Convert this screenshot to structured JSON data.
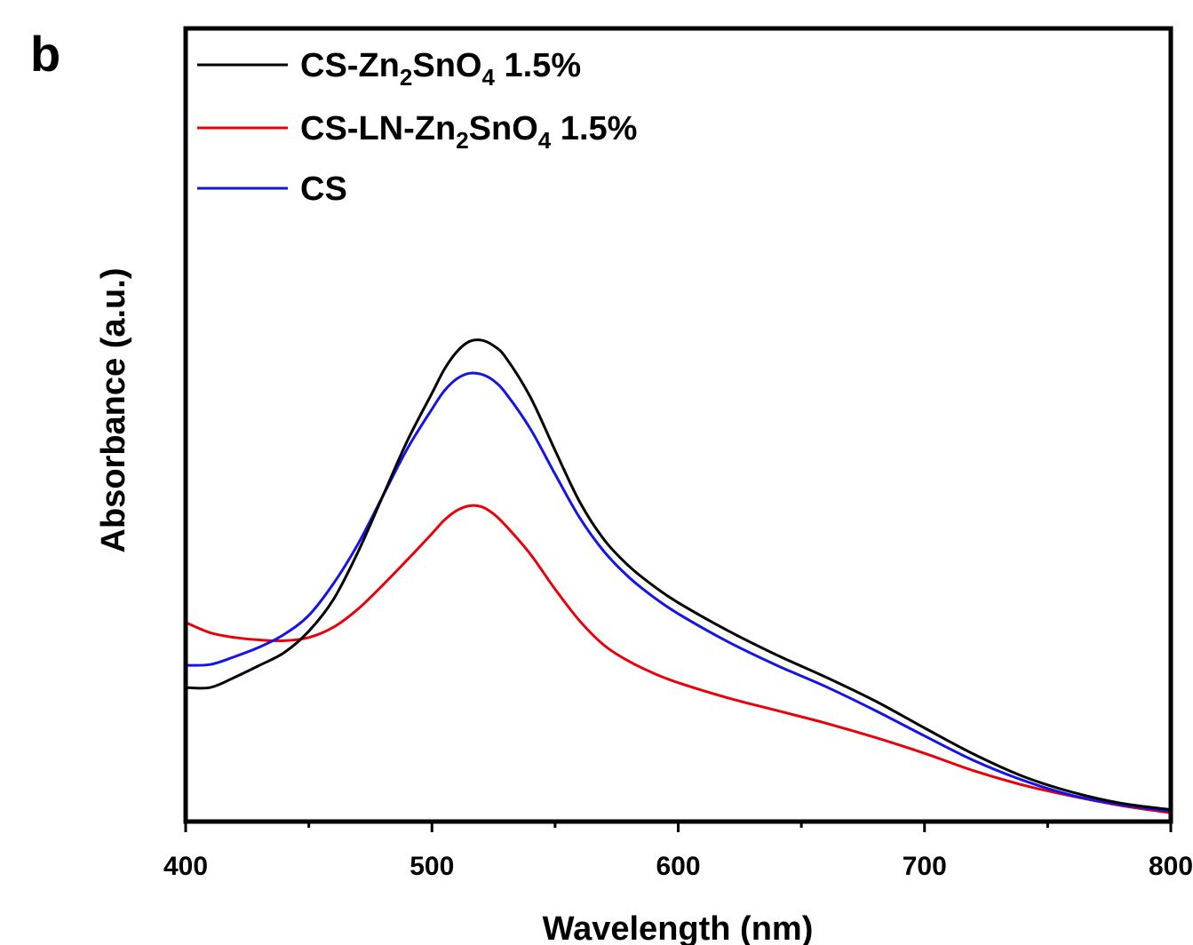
{
  "panel_label": "b",
  "chart_data": {
    "type": "line",
    "xlabel": "Wavelength (nm)",
    "ylabel": "Absorbance (a.u.)",
    "xlim": [
      400,
      800
    ],
    "ylim": [
      0,
      1
    ],
    "x_ticks": [
      400,
      500,
      600,
      700,
      800
    ],
    "x_tick_labels": [
      "400",
      "500",
      "600",
      "700",
      "800"
    ],
    "y_ticks_shown": false,
    "grid": false,
    "legend_position": "top-left",
    "series": [
      {
        "name": "CS-Zn2SnO4 1.5%",
        "legend": {
          "pre": "CS-Zn",
          "sub1": "2",
          "mid": "SnO",
          "sub2": "4",
          "post": " 1.5%"
        },
        "color": "#000000",
        "x": [
          400,
          410,
          420,
          430,
          440,
          450,
          460,
          470,
          480,
          490,
          500,
          505,
          510,
          515,
          520,
          525,
          530,
          540,
          550,
          560,
          570,
          580,
          590,
          600,
          620,
          640,
          660,
          680,
          700,
          720,
          740,
          760,
          780,
          800
        ],
        "y": [
          0.169,
          0.169,
          0.182,
          0.197,
          0.213,
          0.24,
          0.28,
          0.34,
          0.41,
          0.48,
          0.54,
          0.57,
          0.592,
          0.605,
          0.607,
          0.6,
          0.585,
          0.535,
          0.468,
          0.403,
          0.355,
          0.322,
          0.297,
          0.276,
          0.241,
          0.21,
          0.182,
          0.152,
          0.118,
          0.085,
          0.057,
          0.037,
          0.023,
          0.015
        ]
      },
      {
        "name": "CS-LN-Zn2SnO4 1.5%",
        "legend": {
          "pre": "CS-LN-Zn",
          "sub1": "2",
          "mid": "SnO",
          "sub2": "4",
          "post": " 1.5%"
        },
        "color": "#e8000b",
        "x": [
          400,
          410,
          420,
          430,
          440,
          450,
          460,
          470,
          480,
          490,
          500,
          505,
          510,
          515,
          520,
          525,
          530,
          540,
          550,
          560,
          570,
          580,
          590,
          600,
          620,
          640,
          660,
          680,
          700,
          720,
          740,
          760,
          780,
          800
        ],
        "y": [
          0.251,
          0.238,
          0.232,
          0.229,
          0.228,
          0.232,
          0.245,
          0.268,
          0.298,
          0.33,
          0.363,
          0.38,
          0.392,
          0.398,
          0.397,
          0.388,
          0.373,
          0.337,
          0.293,
          0.253,
          0.222,
          0.202,
          0.187,
          0.175,
          0.156,
          0.14,
          0.124,
          0.106,
          0.086,
          0.064,
          0.046,
          0.032,
          0.02,
          0.011
        ]
      },
      {
        "name": "CS",
        "legend": {
          "pre": "CS",
          "sub1": "",
          "mid": "",
          "sub2": "",
          "post": ""
        },
        "color": "#1414e6",
        "x": [
          400,
          410,
          420,
          430,
          440,
          450,
          460,
          470,
          480,
          490,
          500,
          505,
          510,
          515,
          520,
          525,
          530,
          540,
          550,
          560,
          570,
          580,
          590,
          600,
          620,
          640,
          660,
          680,
          700,
          720,
          740,
          760,
          780,
          800
        ],
        "y": [
          0.197,
          0.198,
          0.208,
          0.22,
          0.236,
          0.26,
          0.3,
          0.35,
          0.41,
          0.47,
          0.52,
          0.543,
          0.558,
          0.565,
          0.564,
          0.556,
          0.54,
          0.495,
          0.438,
          0.383,
          0.34,
          0.308,
          0.283,
          0.262,
          0.227,
          0.197,
          0.17,
          0.14,
          0.108,
          0.077,
          0.052,
          0.033,
          0.021,
          0.013
        ]
      }
    ]
  }
}
